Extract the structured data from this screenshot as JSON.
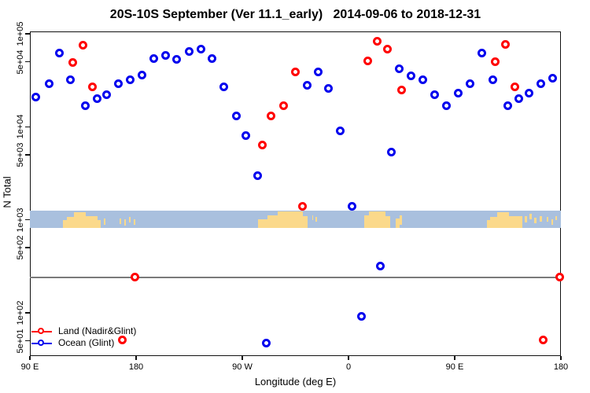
{
  "title": "20S-10S September (Ver 11.1_early)   2014-09-06 to 2018-12-31",
  "chart_data": {
    "type": "scatter",
    "title": "20S-10S September (Ver 11.1_early)   2014-09-06 to 2018-12-31",
    "xlabel": "Longitude (deg E)",
    "ylabel": "N Total",
    "x_axis": {
      "note": "longitude increases eastward from 90E, wrapping through the dateline and prime meridian back to 180",
      "xlim_plot_degrees": [
        90,
        540
      ],
      "ticks": [
        {
          "pos": 90,
          "label": "90 E"
        },
        {
          "pos": 180,
          "label": "180"
        },
        {
          "pos": 270,
          "label": "90 W"
        },
        {
          "pos": 360,
          "label": "0"
        },
        {
          "pos": 450,
          "label": "90 E"
        },
        {
          "pos": 540,
          "label": "180"
        }
      ]
    },
    "y_axis": {
      "scale": "log10",
      "ylim": [
        35,
        110000
      ],
      "ticks": [
        {
          "value": 100000,
          "label": "1e+05"
        },
        {
          "value": 50000,
          "label": "5e+04"
        },
        {
          "value": 10000,
          "label": "1e+04"
        },
        {
          "value": 5000,
          "label": "5e+03"
        },
        {
          "value": 1000,
          "label": "1e+03"
        },
        {
          "value": 500,
          "label": "5e+02"
        },
        {
          "value": 100,
          "label": "1e+02"
        },
        {
          "value": 50,
          "label": "5e+01"
        }
      ]
    },
    "grid": false,
    "legend_position": "bottom-left",
    "reference_line": {
      "value": 240,
      "color": "#7a7a7a"
    },
    "map_strip": {
      "description": "world coastline band 20S-10S drawn across the plot, centered on y=1e+03",
      "value_top": 1250,
      "value_bottom": 820,
      "ocean_color": "#A9C0DE",
      "land_color": "#FBD98B",
      "land_segments": [
        {
          "from": 118,
          "to": 121,
          "t": 0.55,
          "b": 1
        },
        {
          "from": 121,
          "to": 127,
          "t": 0.35,
          "b": 1
        },
        {
          "from": 127,
          "to": 137,
          "t": 0.1,
          "b": 1
        },
        {
          "from": 137,
          "to": 147,
          "t": 0.3,
          "b": 1
        },
        {
          "from": 147,
          "to": 150,
          "t": 0.55,
          "b": 1
        },
        {
          "from": 152.5,
          "to": 154,
          "t": 0.45,
          "b": 0.8
        },
        {
          "from": 166,
          "to": 167.5,
          "t": 0.45,
          "b": 0.78
        },
        {
          "from": 170,
          "to": 171.5,
          "t": 0.5,
          "b": 0.85
        },
        {
          "from": 174,
          "to": 175.5,
          "t": 0.38,
          "b": 0.7
        },
        {
          "from": 178,
          "to": 179.5,
          "t": 0.5,
          "b": 0.8
        },
        {
          "from": 283,
          "to": 291,
          "t": 0.5,
          "b": 1
        },
        {
          "from": 291,
          "to": 300,
          "t": 0.28,
          "b": 1
        },
        {
          "from": 300,
          "to": 321,
          "t": 0.05,
          "b": 1
        },
        {
          "from": 321,
          "to": 325,
          "t": 0.3,
          "b": 1
        },
        {
          "from": 329,
          "to": 330,
          "t": 0.25,
          "b": 0.55
        },
        {
          "from": 332,
          "to": 333,
          "t": 0.35,
          "b": 0.65
        },
        {
          "from": 373,
          "to": 377,
          "t": 0.25,
          "b": 1
        },
        {
          "from": 377,
          "to": 391,
          "t": 0.05,
          "b": 1
        },
        {
          "from": 391,
          "to": 395,
          "t": 0.3,
          "b": 1
        },
        {
          "from": 400,
          "to": 403,
          "t": 0.45,
          "b": 1
        },
        {
          "from": 403,
          "to": 405,
          "t": 0.25,
          "b": 0.8
        },
        {
          "from": 477,
          "to": 480,
          "t": 0.55,
          "b": 1
        },
        {
          "from": 480,
          "to": 486,
          "t": 0.35,
          "b": 1
        },
        {
          "from": 486,
          "to": 496,
          "t": 0.1,
          "b": 1
        },
        {
          "from": 496,
          "to": 507,
          "t": 0.3,
          "b": 1
        },
        {
          "from": 509,
          "to": 511,
          "t": 0.3,
          "b": 0.7
        },
        {
          "from": 513,
          "to": 515,
          "t": 0.18,
          "b": 0.5
        },
        {
          "from": 517,
          "to": 519,
          "t": 0.4,
          "b": 0.75
        },
        {
          "from": 522,
          "to": 524,
          "t": 0.3,
          "b": 0.62
        },
        {
          "from": 528,
          "to": 529,
          "t": 0.35,
          "b": 0.62
        },
        {
          "from": 532,
          "to": 533.5,
          "t": 0.5,
          "b": 0.82
        },
        {
          "from": 535.5,
          "to": 536.5,
          "t": 0.3,
          "b": 0.55
        }
      ]
    },
    "series": [
      {
        "name": "Land (Nadir&Glint)",
        "color": "#FF0000",
        "marker": "open-circle",
        "points": [
          [
            126,
            49000
          ],
          [
            135,
            76000
          ],
          [
            143,
            27000
          ],
          [
            287,
            6400
          ],
          [
            294,
            13000
          ],
          [
            305,
            17000
          ],
          [
            315,
            39000
          ],
          [
            321,
            1400
          ],
          [
            376,
            51000
          ],
          [
            384,
            83000
          ],
          [
            393,
            69000
          ],
          [
            405,
            25000
          ],
          [
            484,
            50000
          ],
          [
            493,
            77000
          ],
          [
            501,
            27000
          ],
          [
            179,
            240
          ],
          [
            168,
            51
          ],
          [
            525,
            51
          ],
          [
            539,
            240
          ]
        ]
      },
      {
        "name": "Ocean (Glint)",
        "color": "#0000EE",
        "marker": "open-circle",
        "points": [
          [
            95,
            21000
          ],
          [
            106,
            29000
          ],
          [
            115,
            62000
          ],
          [
            124,
            32000
          ],
          [
            137,
            17000
          ],
          [
            147,
            20000
          ],
          [
            155,
            22000
          ],
          [
            165,
            29000
          ],
          [
            175,
            32000
          ],
          [
            185,
            36000
          ],
          [
            195,
            54000
          ],
          [
            205,
            58000
          ],
          [
            214,
            53000
          ],
          [
            225,
            65000
          ],
          [
            235,
            68000
          ],
          [
            244,
            54000
          ],
          [
            254,
            27000
          ],
          [
            265,
            13000
          ],
          [
            273,
            8100
          ],
          [
            283,
            3000
          ],
          [
            290,
            47
          ],
          [
            325,
            28000
          ],
          [
            334,
            39000
          ],
          [
            343,
            26000
          ],
          [
            353,
            9000
          ],
          [
            363,
            1400
          ],
          [
            371,
            91
          ],
          [
            387,
            320
          ],
          [
            396,
            5300
          ],
          [
            403,
            42000
          ],
          [
            413,
            35000
          ],
          [
            423,
            32000
          ],
          [
            433,
            22000
          ],
          [
            443,
            17000
          ],
          [
            453,
            23000
          ],
          [
            463,
            29000
          ],
          [
            473,
            62000
          ],
          [
            482,
            32000
          ],
          [
            495,
            17000
          ],
          [
            504,
            20000
          ],
          [
            513,
            23000
          ],
          [
            523,
            29000
          ],
          [
            533,
            33000
          ]
        ]
      }
    ]
  },
  "legend": {
    "items": [
      {
        "label": "Land (Nadir&Glint)",
        "color": "#FF0000"
      },
      {
        "label": "Ocean (Glint)",
        "color": "#0000EE"
      }
    ]
  }
}
